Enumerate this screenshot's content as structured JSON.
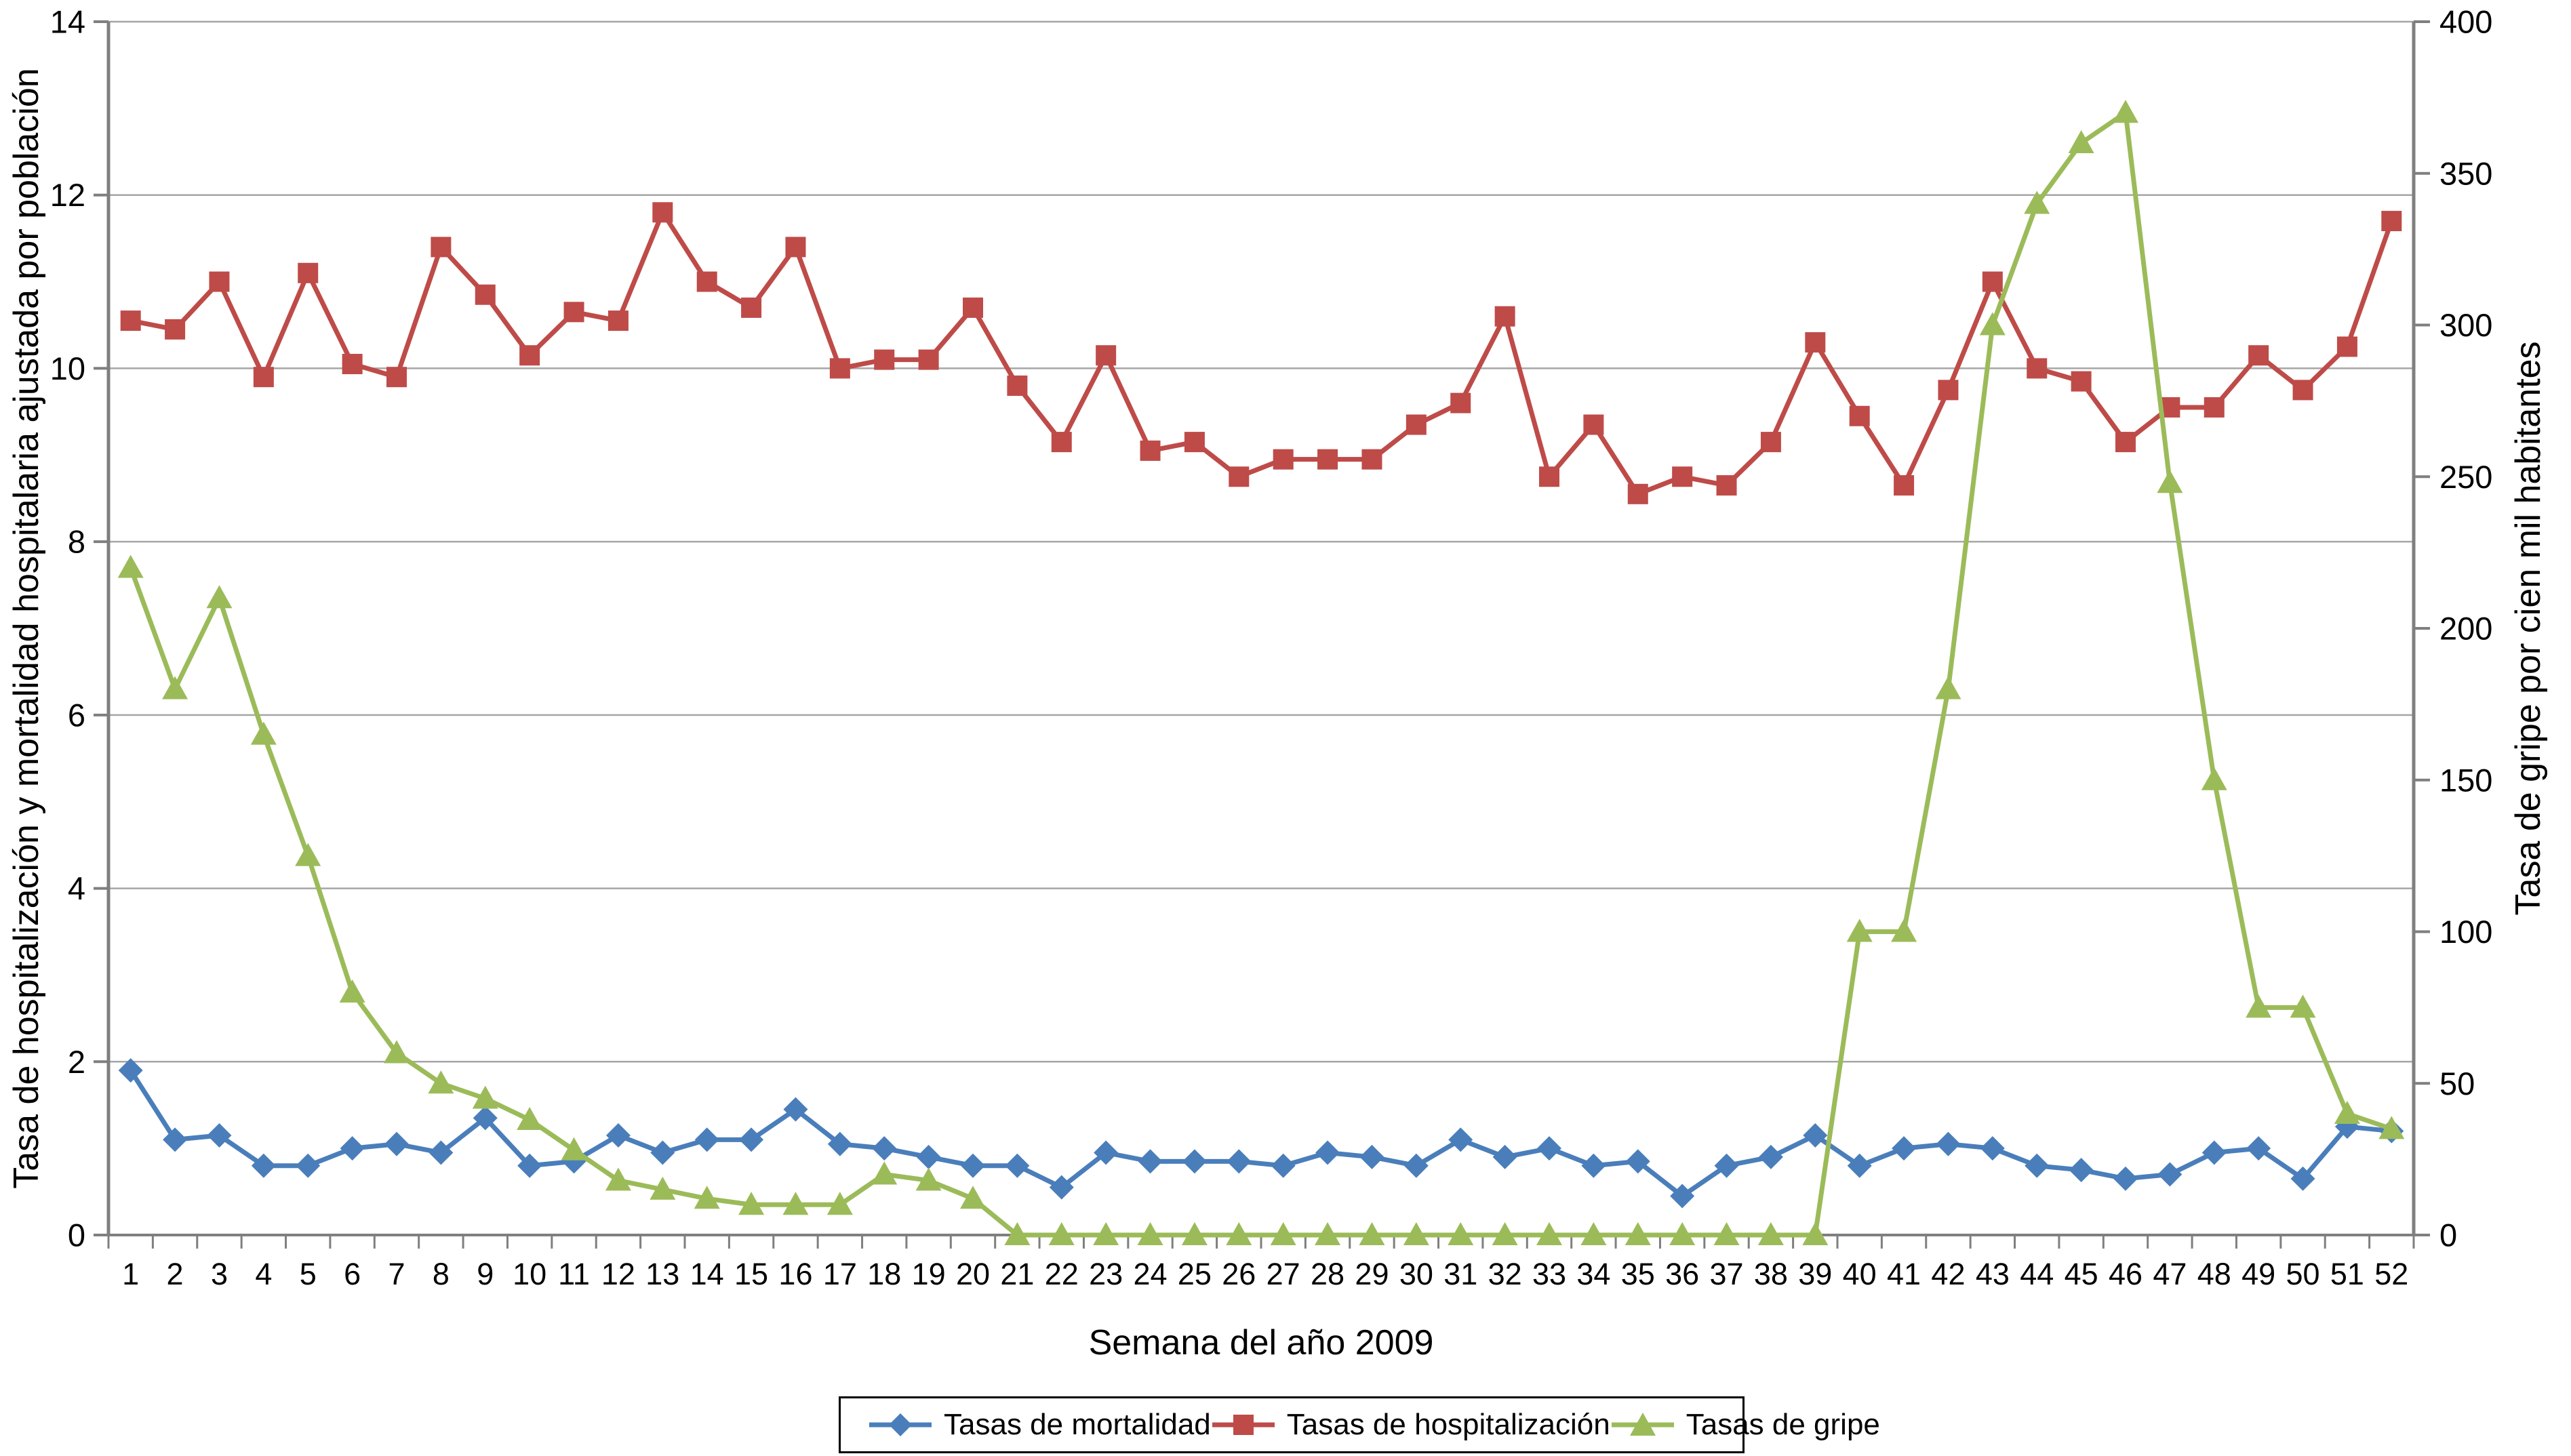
{
  "page": {
    "background": "#ffffff"
  },
  "chart_data": {
    "type": "line",
    "title": "",
    "xlabel": "Semana del año 2009",
    "ylabel_left": "Tasa de hospitalización y mortalidad hospitalaria ajustada por población",
    "ylabel_right": "Tasa de gripe por cien mil habitantes",
    "x": [
      1,
      2,
      3,
      4,
      5,
      6,
      7,
      8,
      9,
      10,
      11,
      12,
      13,
      14,
      15,
      16,
      17,
      18,
      19,
      20,
      21,
      22,
      23,
      24,
      25,
      26,
      27,
      28,
      29,
      30,
      31,
      32,
      33,
      34,
      35,
      36,
      37,
      38,
      39,
      40,
      41,
      42,
      43,
      44,
      45,
      46,
      47,
      48,
      49,
      50,
      51,
      52
    ],
    "ylim_left": [
      0,
      14
    ],
    "ylim_right": [
      0,
      400
    ],
    "yticks_left": [
      0,
      2,
      4,
      6,
      8,
      10,
      12,
      14
    ],
    "yticks_right": [
      0,
      50,
      100,
      150,
      200,
      250,
      300,
      350,
      400
    ],
    "grid": "horizontal",
    "legend_position": "bottom-center",
    "colors": {
      "axis": "#7F7F7F",
      "gridline": "#A6A6A6",
      "text": "#000000",
      "legend_border": "#000000"
    },
    "series": [
      {
        "name": "Tasas de mortalidad",
        "axis": "left",
        "marker": "diamond",
        "color": "#4A7EBB",
        "values": [
          1.9,
          1.1,
          1.15,
          0.8,
          0.8,
          1.0,
          1.05,
          0.95,
          1.35,
          0.8,
          0.85,
          1.15,
          0.95,
          1.1,
          1.1,
          1.45,
          1.05,
          1.0,
          0.9,
          0.8,
          0.8,
          0.55,
          0.95,
          0.85,
          0.85,
          0.85,
          0.8,
          0.95,
          0.9,
          0.8,
          1.1,
          0.9,
          1.0,
          0.8,
          0.85,
          0.45,
          0.8,
          0.9,
          1.15,
          0.8,
          1.0,
          1.05,
          1.0,
          0.8,
          0.75,
          0.65,
          0.7,
          0.95,
          1.0,
          0.65,
          1.25,
          1.2
        ]
      },
      {
        "name": "Tasas de hospitalización",
        "axis": "left",
        "marker": "square",
        "color": "#BE4B48",
        "values": [
          10.55,
          10.45,
          11.0,
          9.9,
          11.1,
          10.05,
          9.9,
          11.4,
          10.85,
          10.15,
          10.65,
          10.55,
          11.8,
          11.0,
          10.7,
          11.4,
          10.0,
          10.1,
          10.1,
          10.7,
          9.8,
          9.15,
          10.15,
          9.05,
          9.15,
          8.75,
          8.95,
          8.95,
          8.95,
          9.35,
          9.6,
          10.6,
          8.75,
          9.35,
          8.55,
          8.75,
          8.65,
          9.15,
          10.3,
          9.45,
          8.65,
          9.75,
          11.0,
          10.0,
          9.85,
          9.15,
          9.55,
          9.55,
          10.15,
          9.75,
          10.25,
          11.7
        ]
      },
      {
        "name": "Tasas de gripe",
        "axis": "right",
        "marker": "triangle",
        "color": "#9BBB59",
        "values": [
          220,
          180,
          210,
          165,
          125,
          80,
          60,
          50,
          45,
          38,
          28,
          18,
          15,
          12,
          10,
          10,
          10,
          20,
          18,
          12,
          0,
          0,
          0,
          0,
          0,
          0,
          0,
          0,
          0,
          0,
          0,
          0,
          0,
          0,
          0,
          0,
          0,
          0,
          0,
          100,
          100,
          180,
          300,
          340,
          360,
          370,
          248,
          150,
          75,
          75,
          40,
          35
        ]
      }
    ]
  }
}
